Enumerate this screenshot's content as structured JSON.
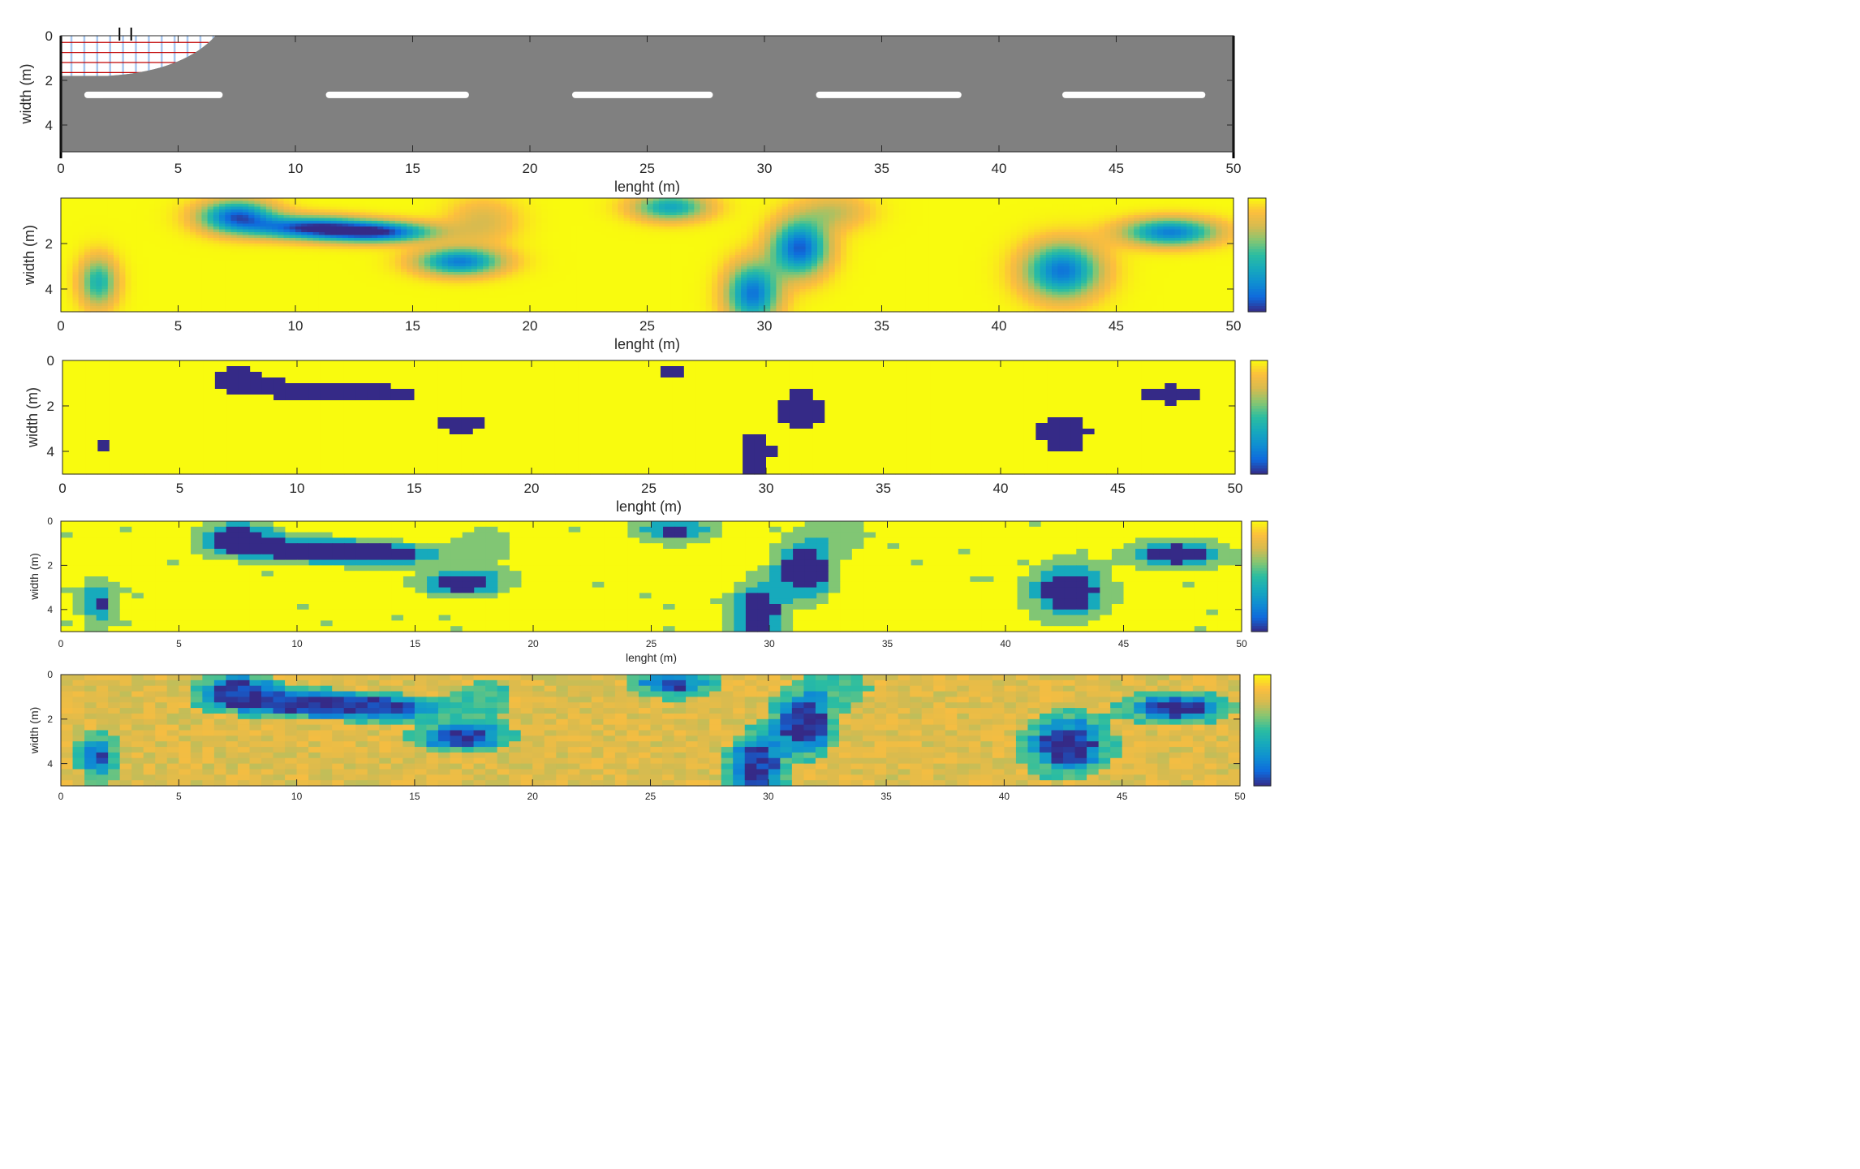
{
  "figure": {
    "panels": 5,
    "colormap": "parula",
    "road_colors": {
      "asphalt": "#808080",
      "marking": "#ffffff",
      "grid_red": "#c00000",
      "grid_blue": "#a8c8f0"
    }
  },
  "chart_data": [
    {
      "type": "heatmap",
      "subtype": "road-schematic",
      "xlabel": "lenght (m)",
      "ylabel": "width (m)",
      "xlim": [
        0,
        50
      ],
      "ylim": [
        0,
        5.2
      ],
      "y_reversed": true,
      "xticks": [
        "0",
        "5",
        "10",
        "15",
        "20",
        "25",
        "30",
        "35",
        "40",
        "45",
        "50"
      ],
      "yticks": [
        "0",
        "2",
        "4"
      ],
      "lane_markings": [
        [
          1,
          6.9
        ],
        [
          11.3,
          17.4
        ],
        [
          21.8,
          27.8
        ],
        [
          32.2,
          38.4
        ],
        [
          42.7,
          48.8
        ]
      ],
      "lane_marking_y": 2.65
    },
    {
      "type": "heatmap",
      "subtype": "continuous-field",
      "xlabel": "lenght (m)",
      "ylabel": "width (m)",
      "xlim": [
        0,
        50
      ],
      "ylim": [
        0,
        5
      ],
      "y_reversed": true,
      "xticks": [
        "0",
        "5",
        "10",
        "15",
        "20",
        "25",
        "30",
        "35",
        "40",
        "45",
        "50"
      ],
      "yticks": [
        "2",
        "4"
      ],
      "colorbar": {
        "range": [
          0,
          3
        ],
        "ticks": [
          "0",
          "1",
          "2",
          "3"
        ]
      },
      "background": 3,
      "blobs": [
        {
          "x": 7.5,
          "y": 0.8,
          "sx": 1.6,
          "sy": 0.7,
          "a": -2.6
        },
        {
          "x": 10.5,
          "y": 1.3,
          "sx": 2.4,
          "sy": 0.5,
          "a": -2.6
        },
        {
          "x": 13.5,
          "y": 1.5,
          "sx": 2.4,
          "sy": 0.45,
          "a": -2.8
        },
        {
          "x": 17,
          "y": 2.8,
          "sx": 1.8,
          "sy": 0.6,
          "a": -2.4
        },
        {
          "x": 1.6,
          "y": 3.7,
          "sx": 0.8,
          "sy": 1.1,
          "a": -1.7
        },
        {
          "x": 26,
          "y": 0.4,
          "sx": 1.6,
          "sy": 0.6,
          "a": -1.9
        },
        {
          "x": 31.5,
          "y": 2.2,
          "sx": 1.2,
          "sy": 1.2,
          "a": -2.7
        },
        {
          "x": 29.5,
          "y": 4.2,
          "sx": 1.1,
          "sy": 1.3,
          "a": -2.5
        },
        {
          "x": 42.7,
          "y": 3.2,
          "sx": 1.6,
          "sy": 1.2,
          "a": -2.5
        },
        {
          "x": 47.3,
          "y": 1.5,
          "sx": 2.0,
          "sy": 0.6,
          "a": -2.4
        },
        {
          "x": 18,
          "y": 1.0,
          "sx": 1.5,
          "sy": 1.0,
          "a": -0.7
        },
        {
          "x": 33,
          "y": 0.6,
          "sx": 1.5,
          "sy": 0.8,
          "a": -0.8
        }
      ]
    },
    {
      "type": "heatmap",
      "subtype": "binary-mask",
      "xlabel": "lenght (m)",
      "ylabel": "width (m)",
      "xlim": [
        0,
        50
      ],
      "ylim": [
        0,
        5
      ],
      "y_reversed": true,
      "xticks": [
        "0",
        "5",
        "10",
        "15",
        "20",
        "25",
        "30",
        "35",
        "40",
        "45",
        "50"
      ],
      "yticks": [
        "0",
        "2",
        "4"
      ],
      "colorbar": {
        "range": [
          0,
          1
        ],
        "ticks": []
      },
      "values": [
        0,
        1
      ],
      "threshold": 1.4
    },
    {
      "type": "heatmap",
      "subtype": "classified-4-levels",
      "xlabel": "lenght (m)",
      "ylabel": "width (m)",
      "xlim": [
        0,
        50
      ],
      "ylim": [
        0,
        5
      ],
      "y_reversed": true,
      "xticks": [
        "0",
        "5",
        "10",
        "15",
        "20",
        "25",
        "30",
        "35",
        "40",
        "45",
        "50"
      ],
      "yticks": [
        "0",
        "2",
        "4"
      ],
      "colorbar": {
        "range": [
          0,
          3
        ],
        "ticks": []
      },
      "levels": [
        0,
        1,
        2,
        3
      ],
      "thresholds": [
        1.4,
        2.0,
        2.6
      ]
    },
    {
      "type": "heatmap",
      "subtype": "classified-noisy",
      "xlabel": "",
      "ylabel": "width (m)",
      "xlim": [
        0,
        50
      ],
      "ylim": [
        0,
        5
      ],
      "y_reversed": true,
      "xticks": [
        "0",
        "5",
        "10",
        "15",
        "20",
        "25",
        "30",
        "35",
        "40",
        "45",
        "50"
      ],
      "yticks": [
        "0",
        "2",
        "4"
      ],
      "colorbar": {
        "range": [
          0,
          3
        ],
        "ticks": []
      },
      "levels": [
        0,
        1,
        2,
        3
      ],
      "thresholds": [
        1.4,
        2.0,
        2.6
      ]
    }
  ]
}
